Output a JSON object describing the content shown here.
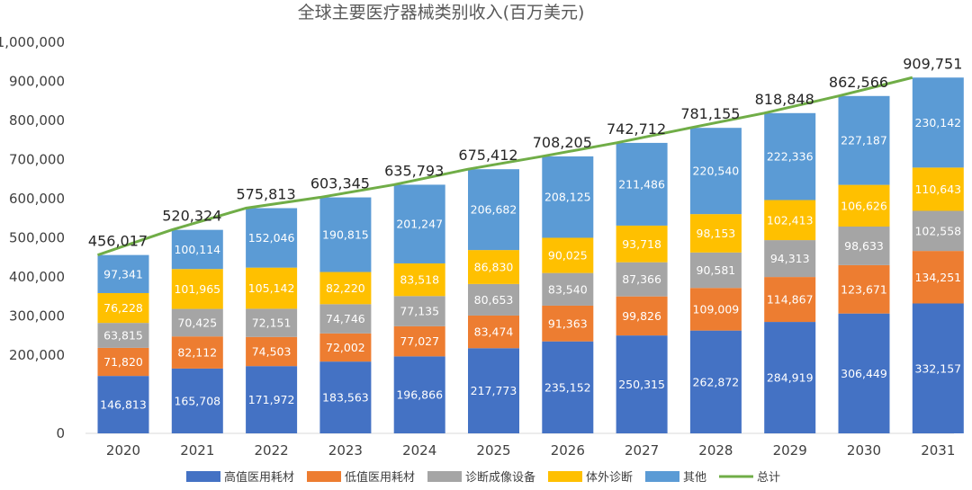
{
  "chart_data": {
    "type": "bar",
    "stacked": true,
    "title": "全球主要医疗器械类别收入(百万美元)",
    "xlabel": "",
    "ylabel": "",
    "categories": [
      "2020",
      "2021",
      "2022",
      "2023",
      "2024",
      "2025",
      "2026",
      "2027",
      "2028",
      "2029",
      "2030",
      "2031"
    ],
    "y_ticks": [
      0,
      200000,
      300000,
      400000,
      500000,
      600000,
      700000,
      800000,
      900000,
      1000000
    ],
    "y_tick_labels": [
      "0",
      "200,000",
      "300,000",
      "400,000",
      "500,000",
      "600,000",
      "700,000",
      "800,000",
      "900,000",
      "1,000,000"
    ],
    "series": [
      {
        "name": "高值医用耗材",
        "color": "#4472C4",
        "values": [
          146813,
          165708,
          171972,
          183563,
          196866,
          217773,
          235152,
          250315,
          262872,
          284919,
          306449,
          332157
        ],
        "labels": [
          "146,813",
          "165,708",
          "171,972",
          "183,563",
          "196,866",
          "217,773",
          "235,152",
          "250,315",
          "262,872",
          "284,919",
          "306,449",
          "332,157"
        ]
      },
      {
        "name": "低值医用耗材",
        "color": "#ED7D31",
        "values": [
          71820,
          82112,
          74503,
          72002,
          77027,
          83474,
          91363,
          99826,
          109009,
          114867,
          123671,
          134251
        ],
        "labels": [
          "71,820",
          "82,112",
          "74,503",
          "72,002",
          "77,027",
          "83,474",
          "91,363",
          "99,826",
          "109,009",
          "114,867",
          "123,671",
          "134,251"
        ]
      },
      {
        "name": "诊断成像设备",
        "color": "#A5A5A5",
        "values": [
          63815,
          70425,
          72151,
          74746,
          77135,
          80653,
          83540,
          87366,
          90581,
          94313,
          98633,
          102558
        ],
        "labels": [
          "63,815",
          "70,425",
          "72,151",
          "74,746",
          "77,135",
          "80,653",
          "83,540",
          "87,366",
          "90,581",
          "94,313",
          "98,633",
          "102,558"
        ]
      },
      {
        "name": "体外诊断",
        "color": "#FFC000",
        "values": [
          76228,
          101965,
          105142,
          82220,
          83518,
          86830,
          90025,
          93718,
          98153,
          102413,
          106626,
          110643
        ],
        "labels": [
          "76,228",
          "101,965",
          "105,142",
          "82,220",
          "83,518",
          "86,830",
          "90,025",
          "93,718",
          "98,153",
          "102,413",
          "106,626",
          "110,643"
        ]
      },
      {
        "name": "其他",
        "color": "#5B9BD5",
        "values": [
          97341,
          100114,
          152046,
          190815,
          201247,
          206682,
          208125,
          211486,
          220540,
          222336,
          227187,
          230142
        ],
        "labels": [
          "97,341",
          "100,114",
          "152,046",
          "190,815",
          "201,247",
          "206,682",
          "208,125",
          "211,486",
          "220,540",
          "222,336",
          "227,187",
          "230,142"
        ]
      }
    ],
    "total": {
      "name": "总计",
      "color": "#70AD47",
      "values": [
        456017,
        520324,
        575813,
        603345,
        635793,
        675412,
        708205,
        742712,
        781155,
        818848,
        862566,
        909751
      ],
      "labels": [
        "456,017",
        "520,324",
        "575,813",
        "603,345",
        "635,793",
        "675,412",
        "708,205",
        "742,712",
        "781,155",
        "818,848",
        "862,566",
        "909,751"
      ]
    },
    "legend_position": "bottom",
    "grid": false
  }
}
